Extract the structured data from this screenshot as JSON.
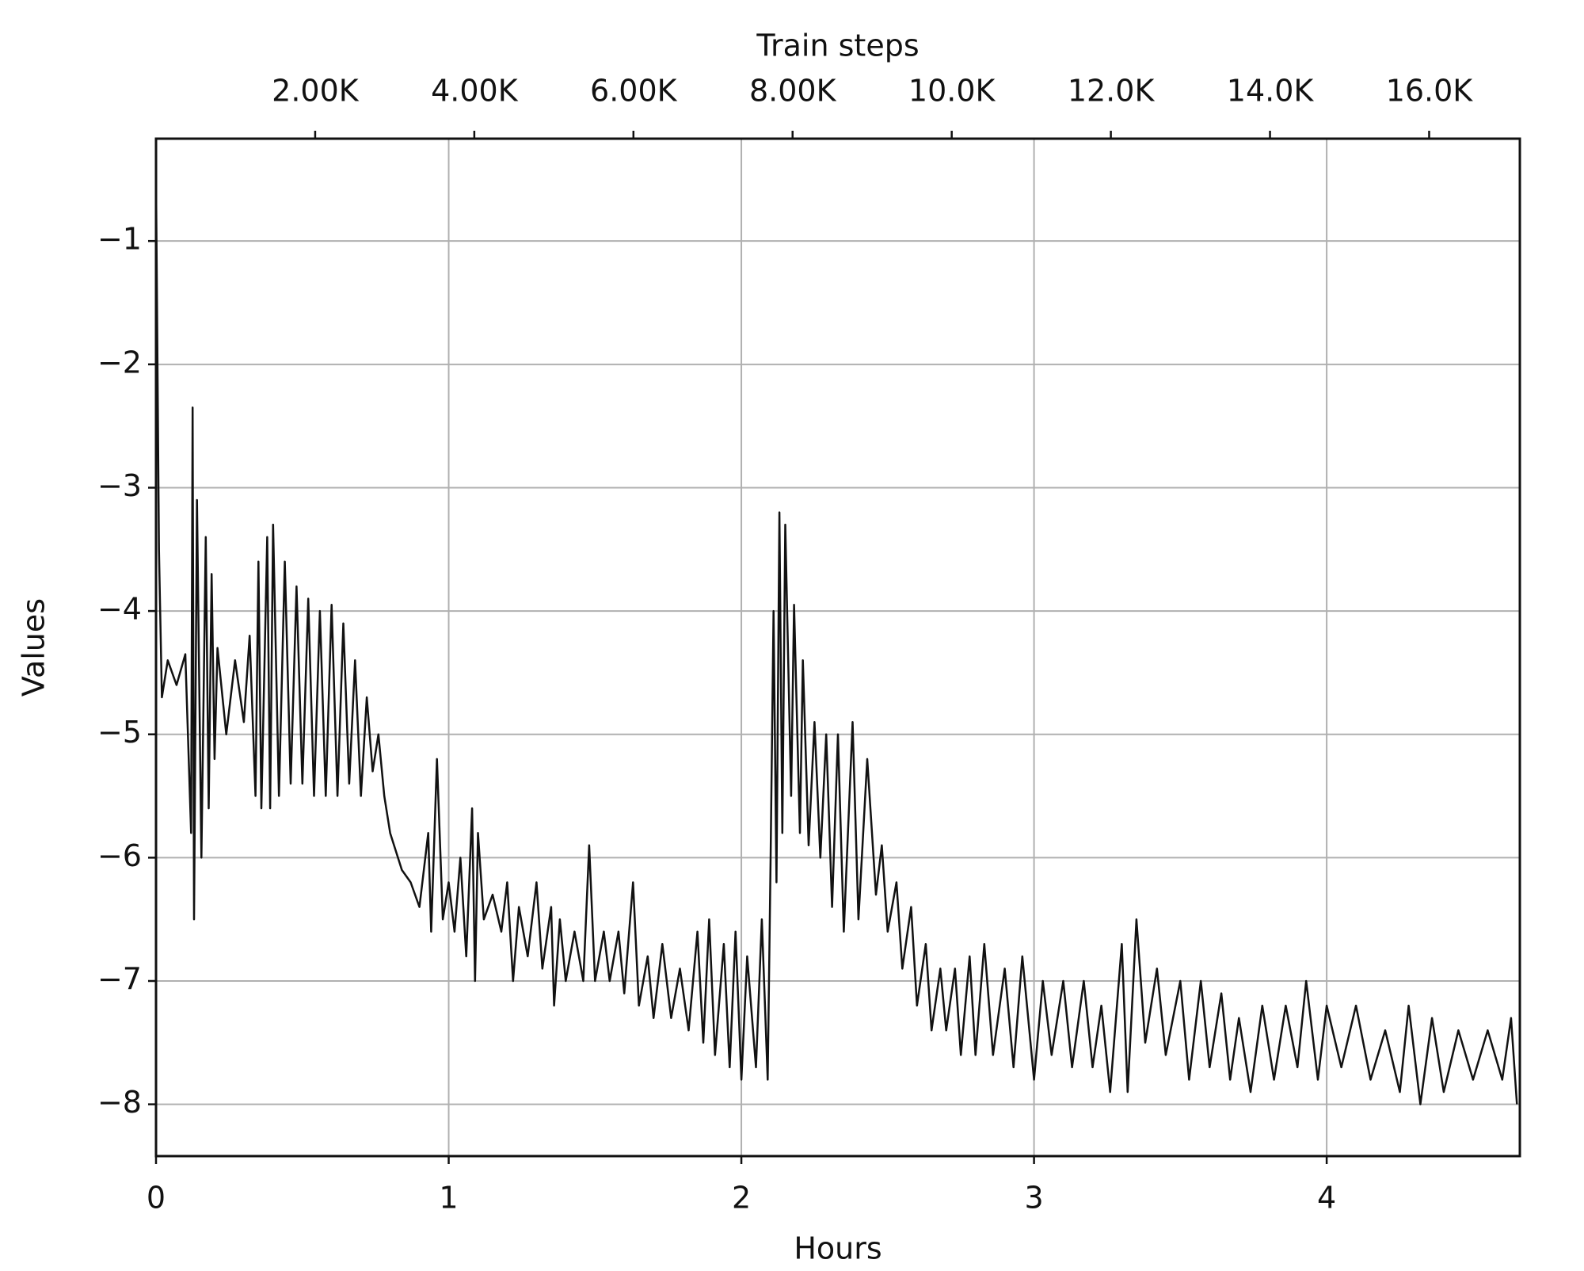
{
  "chart_data": {
    "type": "line",
    "xlabel": "Hours",
    "ylabel": "Values",
    "x2label": "Train steps",
    "x": [
      0,
      0.01,
      0.02,
      0.04,
      0.07,
      0.1,
      0.12,
      0.125,
      0.13,
      0.14,
      0.155,
      0.17,
      0.18,
      0.19,
      0.2,
      0.21,
      0.24,
      0.27,
      0.3,
      0.32,
      0.34,
      0.35,
      0.36,
      0.38,
      0.39,
      0.4,
      0.42,
      0.44,
      0.46,
      0.48,
      0.5,
      0.52,
      0.54,
      0.56,
      0.58,
      0.6,
      0.62,
      0.64,
      0.66,
      0.68,
      0.7,
      0.72,
      0.74,
      0.76,
      0.78,
      0.8,
      0.84,
      0.87,
      0.9,
      0.93,
      0.94,
      0.96,
      0.98,
      1.0,
      1.02,
      1.04,
      1.06,
      1.08,
      1.09,
      1.1,
      1.12,
      1.15,
      1.18,
      1.2,
      1.22,
      1.24,
      1.27,
      1.3,
      1.32,
      1.35,
      1.36,
      1.38,
      1.4,
      1.43,
      1.46,
      1.48,
      1.5,
      1.53,
      1.55,
      1.58,
      1.6,
      1.63,
      1.65,
      1.68,
      1.7,
      1.73,
      1.76,
      1.79,
      1.82,
      1.85,
      1.87,
      1.89,
      1.91,
      1.94,
      1.96,
      1.98,
      2.0,
      2.02,
      2.05,
      2.07,
      2.09,
      2.1,
      2.11,
      2.12,
      2.13,
      2.14,
      2.15,
      2.17,
      2.18,
      2.2,
      2.21,
      2.23,
      2.25,
      2.27,
      2.29,
      2.31,
      2.33,
      2.35,
      2.38,
      2.4,
      2.43,
      2.46,
      2.48,
      2.5,
      2.53,
      2.55,
      2.58,
      2.6,
      2.63,
      2.65,
      2.68,
      2.7,
      2.73,
      2.75,
      2.78,
      2.8,
      2.83,
      2.86,
      2.9,
      2.93,
      2.96,
      3.0,
      3.03,
      3.06,
      3.1,
      3.13,
      3.17,
      3.2,
      3.23,
      3.26,
      3.3,
      3.32,
      3.35,
      3.38,
      3.42,
      3.45,
      3.5,
      3.53,
      3.57,
      3.6,
      3.64,
      3.67,
      3.7,
      3.74,
      3.78,
      3.82,
      3.86,
      3.9,
      3.93,
      3.97,
      4.0,
      4.05,
      4.1,
      4.15,
      4.2,
      4.25,
      4.28,
      4.32,
      4.36,
      4.4,
      4.45,
      4.5,
      4.55,
      4.6,
      4.63,
      4.65
    ],
    "series": [
      {
        "name": "Values",
        "color": "#111111",
        "values": [
          -0.5,
          -3.5,
          -4.7,
          -4.4,
          -4.6,
          -4.35,
          -5.8,
          -2.35,
          -6.5,
          -3.1,
          -6.0,
          -3.4,
          -5.6,
          -3.7,
          -5.2,
          -4.3,
          -5.0,
          -4.4,
          -4.9,
          -4.2,
          -5.5,
          -3.6,
          -5.6,
          -3.4,
          -5.6,
          -3.3,
          -5.5,
          -3.6,
          -5.4,
          -3.8,
          -5.4,
          -3.9,
          -5.5,
          -4.0,
          -5.5,
          -3.95,
          -5.5,
          -4.1,
          -5.4,
          -4.4,
          -5.5,
          -4.7,
          -5.3,
          -5.0,
          -5.5,
          -5.8,
          -6.1,
          -6.2,
          -6.4,
          -5.8,
          -6.6,
          -5.2,
          -6.5,
          -6.2,
          -6.6,
          -6.0,
          -6.8,
          -5.6,
          -7.0,
          -5.8,
          -6.5,
          -6.3,
          -6.6,
          -6.2,
          -7.0,
          -6.4,
          -6.8,
          -6.2,
          -6.9,
          -6.4,
          -7.2,
          -6.5,
          -7.0,
          -6.6,
          -7.0,
          -5.9,
          -7.0,
          -6.6,
          -7.0,
          -6.6,
          -7.1,
          -6.2,
          -7.2,
          -6.8,
          -7.3,
          -6.7,
          -7.3,
          -6.9,
          -7.4,
          -6.6,
          -7.5,
          -6.5,
          -7.6,
          -6.7,
          -7.7,
          -6.6,
          -7.8,
          -6.8,
          -7.7,
          -6.5,
          -7.8,
          -6.0,
          -4.0,
          -6.2,
          -3.2,
          -5.8,
          -3.3,
          -5.5,
          -3.95,
          -5.8,
          -4.4,
          -5.9,
          -4.9,
          -6.0,
          -5.0,
          -6.4,
          -5.0,
          -6.6,
          -4.9,
          -6.5,
          -5.2,
          -6.3,
          -5.9,
          -6.6,
          -6.2,
          -6.9,
          -6.4,
          -7.2,
          -6.7,
          -7.4,
          -6.9,
          -7.4,
          -6.9,
          -7.6,
          -6.8,
          -7.6,
          -6.7,
          -7.6,
          -6.9,
          -7.7,
          -6.8,
          -7.8,
          -7.0,
          -7.6,
          -7.0,
          -7.7,
          -7.0,
          -7.7,
          -7.2,
          -7.9,
          -6.7,
          -7.9,
          -6.5,
          -7.5,
          -6.9,
          -7.6,
          -7.0,
          -7.8,
          -7.0,
          -7.7,
          -7.1,
          -7.8,
          -7.3,
          -7.9,
          -7.2,
          -7.8,
          -7.2,
          -7.7,
          -7.0,
          -7.8,
          -7.2,
          -7.7,
          -7.2,
          -7.8,
          -7.4,
          -7.9,
          -7.2,
          -8.0,
          -7.3,
          -7.9,
          -7.4,
          -7.8,
          -7.4,
          -7.8,
          -7.3,
          -8.0
        ]
      }
    ],
    "xlim": [
      0,
      4.66
    ],
    "xticks": [
      0,
      1,
      2,
      3,
      4
    ],
    "ylim": [
      -8.42,
      -0.17
    ],
    "yticks": [
      {
        "value": -1,
        "label": "−1"
      },
      {
        "value": -2,
        "label": "−2"
      },
      {
        "value": -3,
        "label": "−3"
      },
      {
        "value": -4,
        "label": "−4"
      },
      {
        "value": -5,
        "label": "−5"
      },
      {
        "value": -6,
        "label": "−6"
      },
      {
        "value": -7,
        "label": "−7"
      },
      {
        "value": -8,
        "label": "−8"
      }
    ],
    "x2lim": [
      0,
      17140
    ],
    "x2ticks": [
      {
        "value": 2000,
        "label": "2.00K"
      },
      {
        "value": 4000,
        "label": "4.00K"
      },
      {
        "value": 6000,
        "label": "6.00K"
      },
      {
        "value": 8000,
        "label": "8.00K"
      },
      {
        "value": 10000,
        "label": "10.0K"
      },
      {
        "value": 12000,
        "label": "12.0K"
      },
      {
        "value": 14000,
        "label": "14.0K"
      },
      {
        "value": 16000,
        "label": "16.0K"
      }
    ],
    "grid": true
  }
}
